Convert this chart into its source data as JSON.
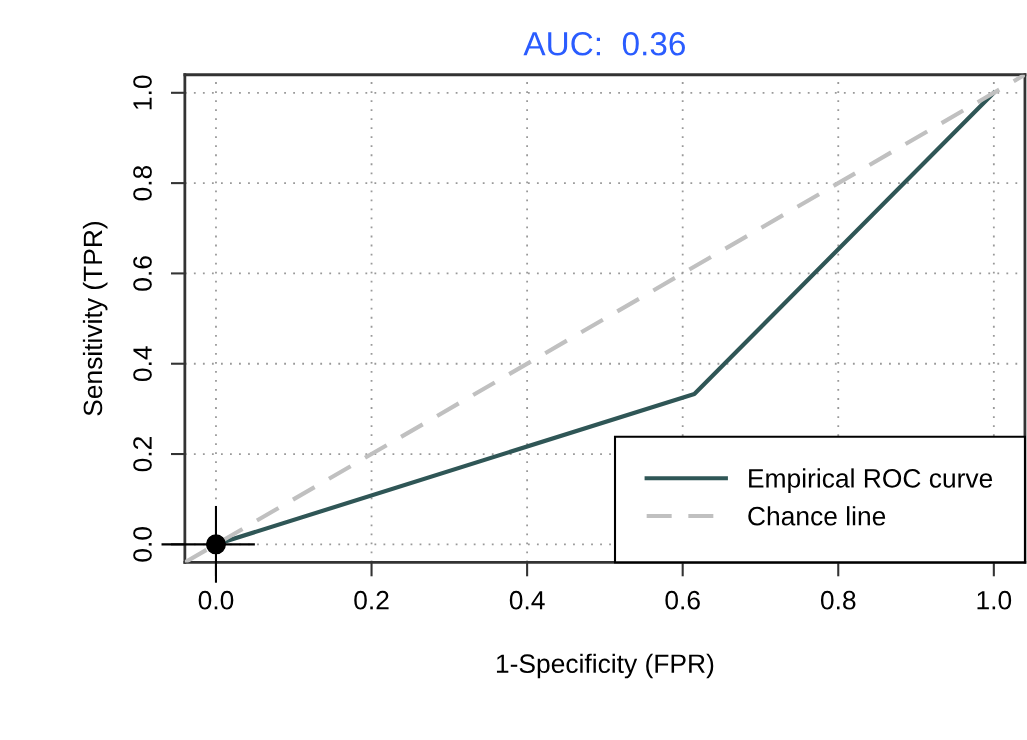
{
  "chart_data": {
    "type": "line",
    "title": "AUC:  0.36",
    "xlabel": "1-Specificity (FPR)",
    "ylabel": "Sensitivity (TPR)",
    "series": [
      {
        "name": "Empirical ROC curve",
        "color": "#2f5656",
        "x": [
          0,
          0.615,
          1
        ],
        "values": [
          0,
          0.333,
          1
        ],
        "line_style": "solid"
      },
      {
        "name": "Chance line",
        "color": "#c0c0c0",
        "x": [
          -0.04,
          1.04
        ],
        "values": [
          -0.04,
          1.04
        ],
        "line_style": "dashed"
      },
      {
        "type": "scatter",
        "color": "#000000",
        "x": [
          0
        ],
        "values": [
          0
        ],
        "marker": "circle",
        "errors": [
          0.085
        ],
        "xerrors": [
          [
            -0.07,
            0.05
          ]
        ]
      }
    ],
    "xlim": [
      -0.04,
      1.04
    ],
    "ylim": [
      -0.04,
      1.04
    ],
    "xticks": [
      {
        "value": 0,
        "label": "0.0"
      },
      {
        "value": 0.2,
        "label": "0.2"
      },
      {
        "value": 0.4,
        "label": "0.4"
      },
      {
        "value": 0.6,
        "label": "0.6"
      },
      {
        "value": 0.8,
        "label": "0.8"
      },
      {
        "value": 1,
        "label": "1.0"
      }
    ],
    "yticks": [
      {
        "value": 0,
        "label": "0.0"
      },
      {
        "value": 0.2,
        "label": "0.2"
      },
      {
        "value": 0.4,
        "label": "0.4"
      },
      {
        "value": 0.6,
        "label": "0.6"
      },
      {
        "value": 0.8,
        "label": "0.8"
      },
      {
        "value": 1,
        "label": "1.0"
      }
    ],
    "grid": true,
    "legend": "bottom right"
  }
}
